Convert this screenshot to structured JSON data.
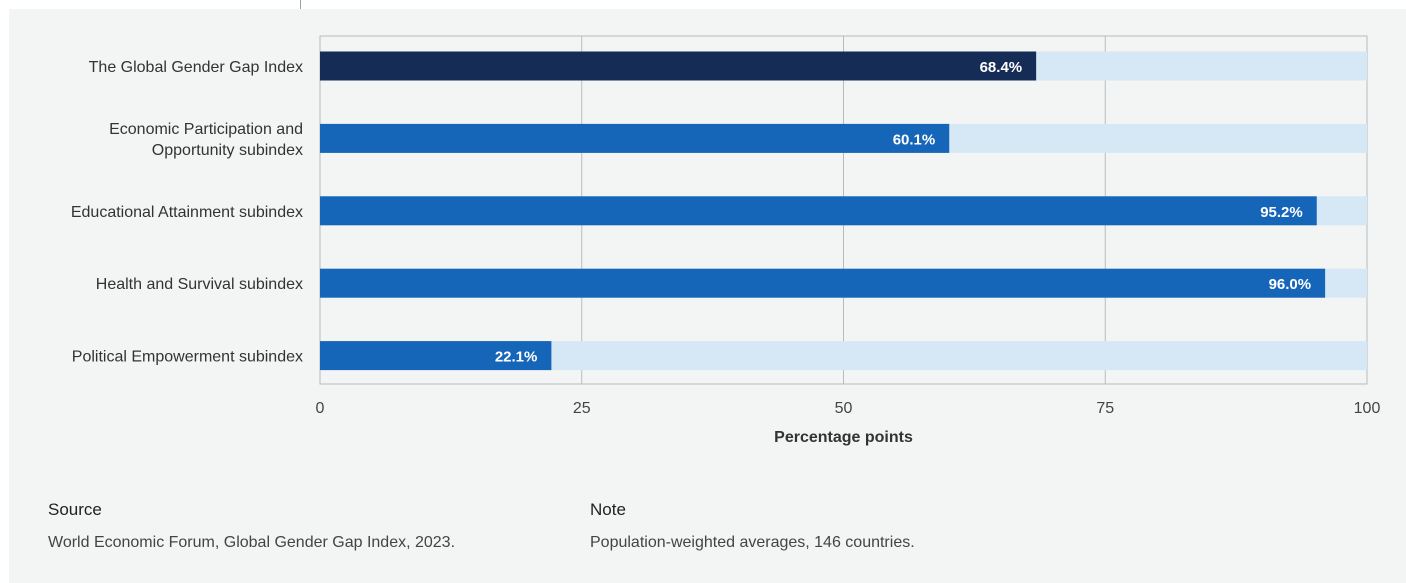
{
  "chart_data": {
    "type": "bar",
    "orientation": "horizontal",
    "categories": [
      [
        "The Global Gender Gap Index"
      ],
      [
        "Economic Participation and",
        "Opportunity subindex"
      ],
      [
        "Educational Attainment subindex"
      ],
      [
        "Health and Survival subindex"
      ],
      [
        "Political Empowerment subindex"
      ]
    ],
    "values": [
      68.4,
      60.1,
      95.2,
      96.0,
      22.1
    ],
    "value_labels": [
      "68.4%",
      "60.1%",
      "95.2%",
      "96.0%",
      "22.1%"
    ],
    "bar_colors": [
      "#152c57",
      "#1565b8",
      "#1565b8",
      "#1565b8",
      "#1565b8"
    ],
    "track_color": "#d6e8f5",
    "xlim": [
      0,
      100
    ],
    "xticks": [
      0,
      25,
      50,
      75,
      100
    ],
    "xlabel": "Percentage points",
    "grid": true
  },
  "footer": {
    "source_heading": "Source",
    "source_text": "World Economic Forum, Global Gender Gap Index, 2023.",
    "note_heading": "Note",
    "note_text": "Population-weighted averages, 146 countries."
  }
}
